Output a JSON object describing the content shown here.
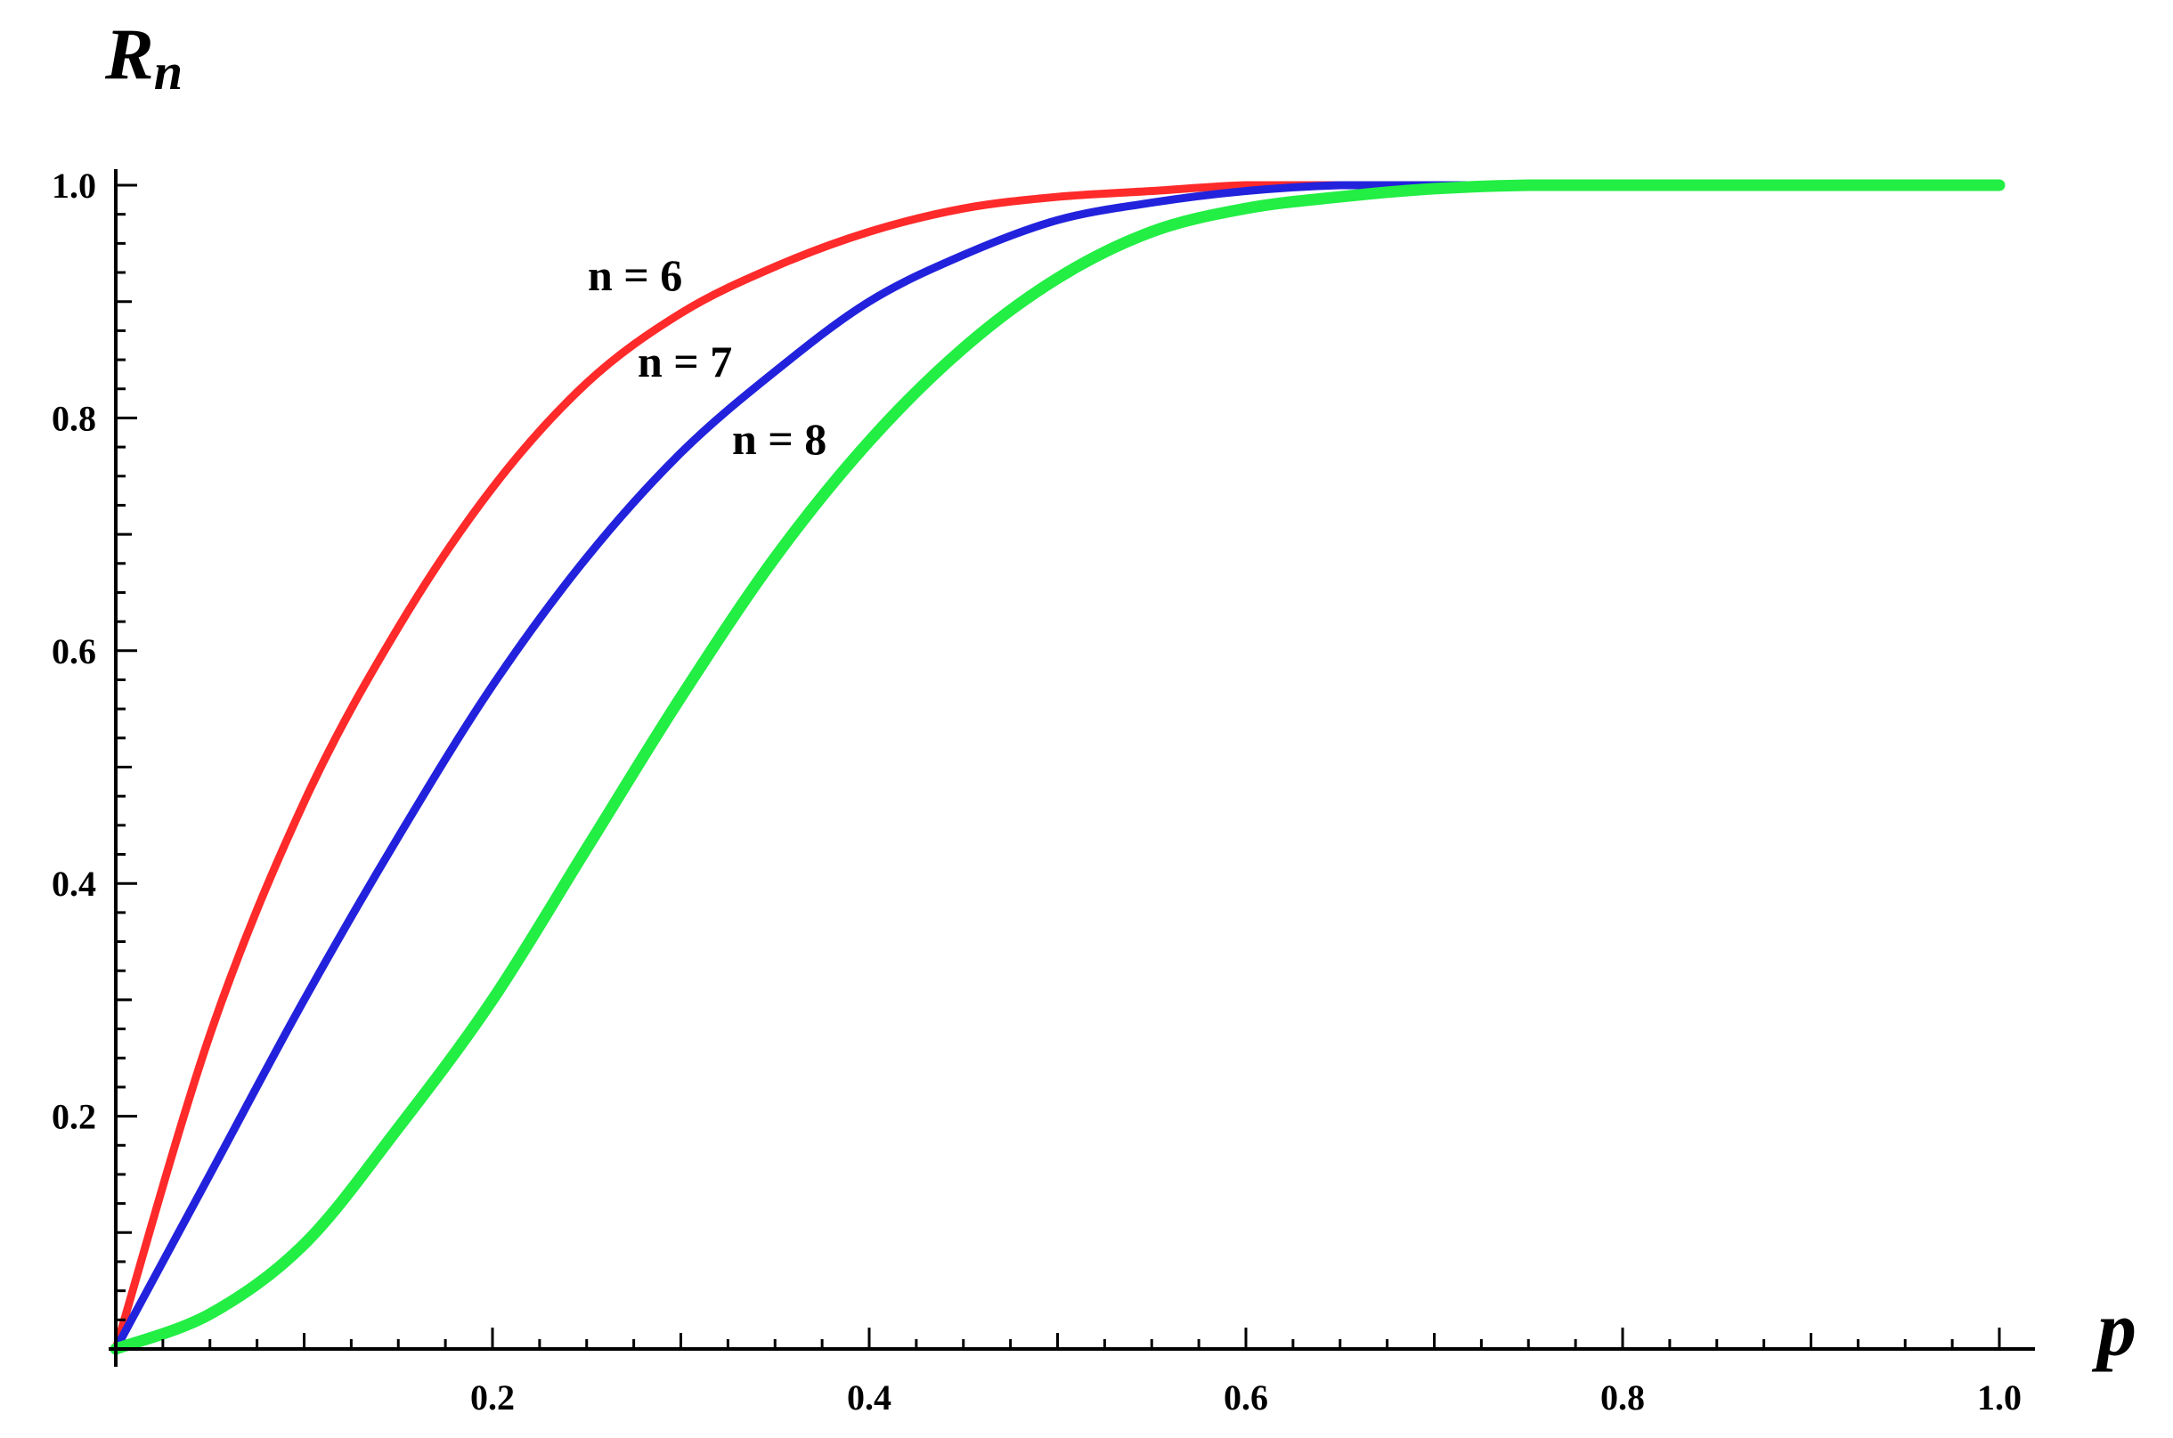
{
  "chart_data": {
    "type": "line",
    "title": "",
    "xlabel": "p",
    "ylabel": "R",
    "ylabel_sub": "n",
    "xlim": [
      0,
      1.0
    ],
    "ylim": [
      0,
      1.0
    ],
    "x_ticks": [
      "0.2",
      "0.4",
      "0.6",
      "0.8",
      "1.0"
    ],
    "y_ticks": [
      "0.2",
      "0.4",
      "0.6",
      "0.8",
      "1.0"
    ],
    "grid": false,
    "legend": "none",
    "annotations": [
      {
        "text": "n = 6",
        "series": 0
      },
      {
        "text": "n = 7",
        "series": 1
      },
      {
        "text": "n = 8",
        "series": 2
      }
    ],
    "series": [
      {
        "color": "#ff2a2a",
        "x": [
          0,
          0.05,
          0.1,
          0.15,
          0.2,
          0.25,
          0.3,
          0.35,
          0.4,
          0.45,
          0.5,
          0.55,
          0.6,
          0.65,
          0.7,
          0.75,
          0.8,
          0.9,
          1.0
        ],
        "y": [
          0,
          0.27,
          0.47,
          0.62,
          0.74,
          0.83,
          0.89,
          0.93,
          0.96,
          0.98,
          0.99,
          0.995,
          1.0,
          1.0,
          1.0,
          1.0,
          1.0,
          1.0,
          1.0
        ]
      },
      {
        "color": "#2222dd",
        "x": [
          0,
          0.05,
          0.1,
          0.15,
          0.2,
          0.25,
          0.3,
          0.35,
          0.4,
          0.45,
          0.5,
          0.55,
          0.6,
          0.65,
          0.7,
          0.75,
          0.8,
          0.9,
          1.0
        ],
        "y": [
          0,
          0.15,
          0.3,
          0.44,
          0.57,
          0.68,
          0.77,
          0.84,
          0.9,
          0.94,
          0.97,
          0.985,
          0.995,
          1.0,
          1.0,
          1.0,
          1.0,
          1.0,
          1.0
        ]
      },
      {
        "color": "#22ee44",
        "x": [
          0,
          0.05,
          0.1,
          0.15,
          0.2,
          0.25,
          0.3,
          0.35,
          0.4,
          0.45,
          0.5,
          0.55,
          0.6,
          0.65,
          0.7,
          0.75,
          0.8,
          0.9,
          1.0
        ],
        "y": [
          0,
          0.03,
          0.09,
          0.19,
          0.3,
          0.43,
          0.56,
          0.68,
          0.78,
          0.86,
          0.92,
          0.96,
          0.98,
          0.99,
          0.997,
          1.0,
          1.0,
          1.0,
          1.0
        ]
      }
    ]
  }
}
